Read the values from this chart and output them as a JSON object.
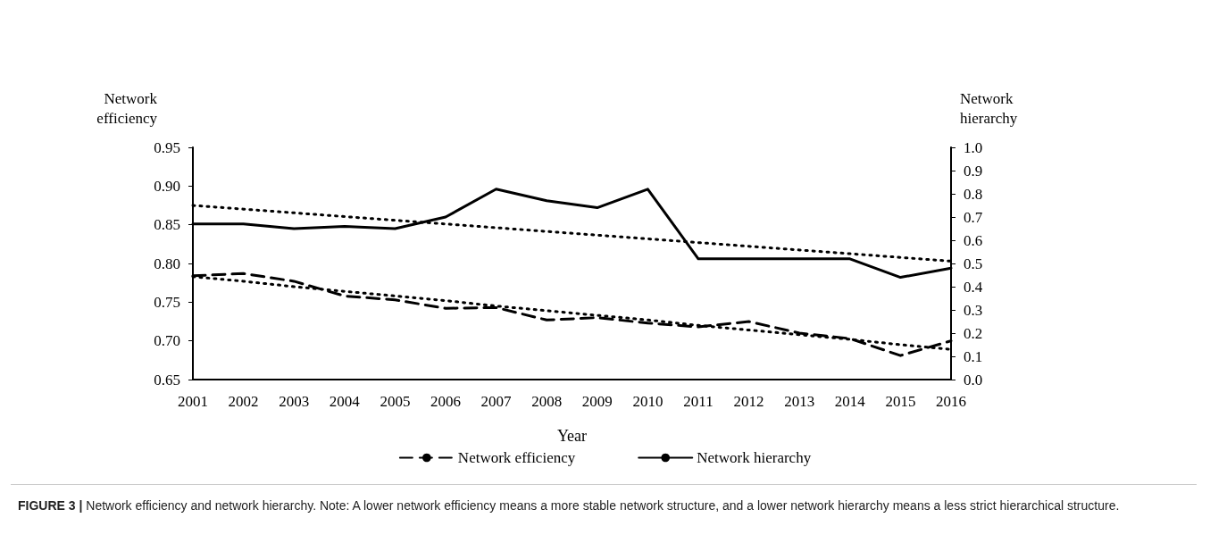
{
  "chart_data": {
    "type": "line",
    "ylabel": "Network efficiency",
    "y2label": "Network hierarchy",
    "xlabel": "Year",
    "categories": [
      "2001",
      "2002",
      "2003",
      "2004",
      "2005",
      "2006",
      "2007",
      "2008",
      "2009",
      "2010",
      "2011",
      "2012",
      "2013",
      "2014",
      "2015",
      "2016"
    ],
    "series": [
      {
        "name": "Network efficiency",
        "color": "#000000",
        "line_style": "dashed",
        "values": [
          0.784,
          0.787,
          0.777,
          0.758,
          0.753,
          0.742,
          0.743,
          0.727,
          0.73,
          0.723,
          0.718,
          0.725,
          0.71,
          0.703,
          0.681,
          0.7
        ]
      },
      {
        "name": "Network hierarchy",
        "color": "#000000",
        "line_style": "solid",
        "axis": "y2",
        "values": [
          0.67,
          0.67,
          0.65,
          0.66,
          0.65,
          0.7,
          0.82,
          0.77,
          0.74,
          0.82,
          0.52,
          0.52,
          0.52,
          0.52,
          0.44,
          0.48
        ]
      },
      {
        "color": "#000000",
        "line_style": "dotted",
        "values": [
          0.783,
          0.777,
          0.77,
          0.764,
          0.758,
          0.752,
          0.745,
          0.739,
          0.733,
          0.727,
          0.72,
          0.714,
          0.708,
          0.702,
          0.695,
          0.689
        ]
      },
      {
        "color": "#000000",
        "line_style": "dotted",
        "axis": "y2",
        "values": [
          0.75,
          0.734,
          0.718,
          0.702,
          0.686,
          0.67,
          0.654,
          0.638,
          0.622,
          0.606,
          0.59,
          0.574,
          0.558,
          0.542,
          0.526,
          0.51
        ]
      }
    ],
    "ylim": [
      0.65,
      0.95
    ],
    "yticks": [
      0.65,
      {
        "value": 0.7,
        "label": "0.70"
      },
      0.75,
      {
        "value": 0.8,
        "label": "0.80"
      },
      0.85,
      {
        "value": 0.9,
        "label": "0.90"
      },
      0.95
    ],
    "y2lim": [
      0.0,
      1.0
    ],
    "y2ticks": [
      {
        "value": 0,
        "label": "0.0"
      },
      0.1,
      0.2,
      0.3,
      0.4,
      0.5,
      0.6,
      0.7,
      0.8,
      0.9,
      {
        "value": 1,
        "label": "1.0"
      }
    ],
    "grid": false,
    "legend": "bottom",
    "marker": "none",
    "annotations": [
      "FIGURE 3 | Network efficiency and network hierarchy. Note: A lower network efficiency means a more stable network structure, and a lower network hierarchy means a less strict hierarchical structure."
    ]
  }
}
